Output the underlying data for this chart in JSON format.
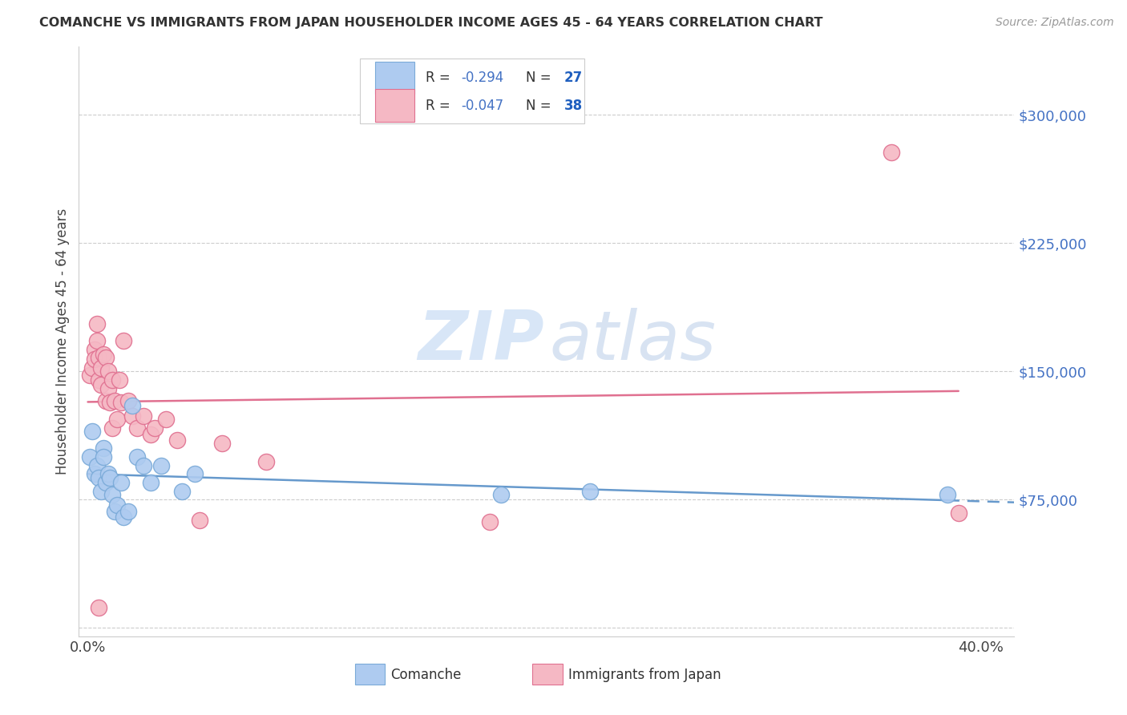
{
  "title": "COMANCHE VS IMMIGRANTS FROM JAPAN HOUSEHOLDER INCOME AGES 45 - 64 YEARS CORRELATION CHART",
  "source": "Source: ZipAtlas.com",
  "ylabel": "Householder Income Ages 45 - 64 years",
  "yticks": [
    0,
    75000,
    150000,
    225000,
    300000
  ],
  "ytick_labels": [
    "",
    "$75,000",
    "$150,000",
    "$225,000",
    "$300,000"
  ],
  "ylim": [
    -5000,
    340000
  ],
  "xlim": [
    -0.004,
    0.415
  ],
  "watermark_zip": "ZIP",
  "watermark_atlas": "atlas",
  "legend_r1": "-0.294",
  "legend_n1": "27",
  "legend_r2": "-0.047",
  "legend_n2": "38",
  "color_blue_fill": "#AECBF0",
  "color_pink_fill": "#F5B8C4",
  "color_blue_edge": "#7AAAD8",
  "color_pink_edge": "#E07090",
  "color_blue_line": "#6699CC",
  "color_pink_line": "#E07090",
  "color_blue_text": "#4472C4",
  "color_pink_text": "#4472C4",
  "color_N_blue": "#1F5FBF",
  "color_axis_text": "#4472C4",
  "background": "#FFFFFF",
  "comanche_x": [
    0.001,
    0.002,
    0.003,
    0.004,
    0.005,
    0.006,
    0.007,
    0.007,
    0.008,
    0.009,
    0.01,
    0.011,
    0.012,
    0.013,
    0.015,
    0.016,
    0.018,
    0.02,
    0.022,
    0.025,
    0.028,
    0.033,
    0.042,
    0.048,
    0.185,
    0.225,
    0.385
  ],
  "comanche_y": [
    100000,
    115000,
    90000,
    95000,
    88000,
    80000,
    105000,
    100000,
    85000,
    90000,
    88000,
    78000,
    68000,
    72000,
    85000,
    65000,
    68000,
    130000,
    100000,
    95000,
    85000,
    95000,
    80000,
    90000,
    78000,
    80000,
    78000
  ],
  "japan_x": [
    0.001,
    0.002,
    0.003,
    0.003,
    0.004,
    0.004,
    0.005,
    0.005,
    0.006,
    0.006,
    0.007,
    0.008,
    0.008,
    0.009,
    0.009,
    0.01,
    0.011,
    0.011,
    0.012,
    0.013,
    0.014,
    0.015,
    0.016,
    0.018,
    0.02,
    0.022,
    0.025,
    0.028,
    0.03,
    0.035,
    0.04,
    0.05,
    0.06,
    0.08,
    0.18,
    0.005,
    0.36,
    0.39
  ],
  "japan_y": [
    148000,
    152000,
    163000,
    157000,
    178000,
    168000,
    158000,
    145000,
    152000,
    142000,
    160000,
    158000,
    133000,
    150000,
    140000,
    132000,
    117000,
    145000,
    133000,
    122000,
    145000,
    132000,
    168000,
    133000,
    124000,
    117000,
    124000,
    113000,
    117000,
    122000,
    110000,
    63000,
    108000,
    97000,
    62000,
    12000,
    278000,
    67000
  ]
}
